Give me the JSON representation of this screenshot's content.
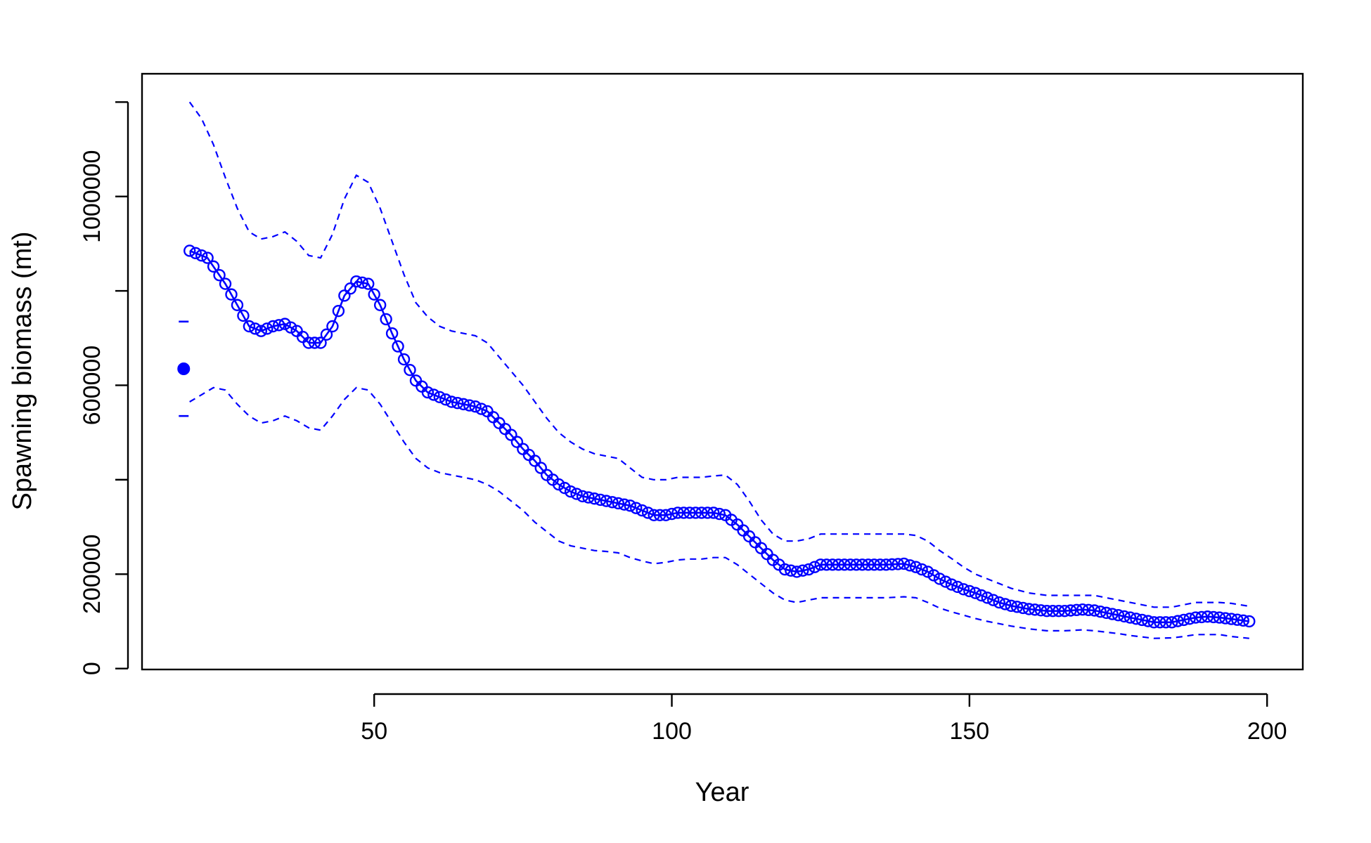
{
  "chart_data": {
    "type": "line",
    "title": "",
    "xlabel": "Year",
    "ylabel": "Spawning biomass (mt)",
    "xlim": [
      11,
      206
    ],
    "ylim": [
      -2000,
      1260000
    ],
    "x_ticks": [
      50,
      100,
      150,
      200
    ],
    "y_ticks": [
      0,
      200000,
      600000,
      1000000
    ],
    "x_tick_labels": [
      "50",
      "100",
      "150",
      "200"
    ],
    "y_tick_labels": [
      "0",
      "200000",
      "600000",
      "1000000"
    ],
    "grid": false,
    "legend": "none",
    "color": "#0000ff",
    "virgin_point": {
      "x": 18,
      "y": 635000,
      "lower": 535000,
      "upper": 735000
    },
    "series": [
      {
        "role": "estimate",
        "style": "line-with-open-circles",
        "points": [
          [
            19,
            885000
          ],
          [
            22,
            870000
          ],
          [
            25,
            815000
          ],
          [
            27,
            770000
          ],
          [
            29,
            725000
          ],
          [
            31,
            715000
          ],
          [
            33,
            725000
          ],
          [
            35,
            730000
          ],
          [
            37,
            715000
          ],
          [
            39,
            690000
          ],
          [
            41,
            690000
          ],
          [
            43,
            725000
          ],
          [
            45,
            790000
          ],
          [
            47,
            820000
          ],
          [
            49,
            815000
          ],
          [
            51,
            770000
          ],
          [
            53,
            710000
          ],
          [
            55,
            655000
          ],
          [
            57,
            610000
          ],
          [
            59,
            585000
          ],
          [
            61,
            575000
          ],
          [
            63,
            565000
          ],
          [
            65,
            560000
          ],
          [
            67,
            555000
          ],
          [
            69,
            545000
          ],
          [
            71,
            520000
          ],
          [
            73,
            495000
          ],
          [
            75,
            465000
          ],
          [
            77,
            440000
          ],
          [
            79,
            410000
          ],
          [
            81,
            390000
          ],
          [
            83,
            375000
          ],
          [
            85,
            365000
          ],
          [
            87,
            360000
          ],
          [
            89,
            355000
          ],
          [
            91,
            350000
          ],
          [
            93,
            345000
          ],
          [
            95,
            335000
          ],
          [
            97,
            325000
          ],
          [
            99,
            325000
          ],
          [
            101,
            330000
          ],
          [
            103,
            330000
          ],
          [
            105,
            330000
          ],
          [
            107,
            330000
          ],
          [
            109,
            325000
          ],
          [
            111,
            305000
          ],
          [
            113,
            280000
          ],
          [
            115,
            255000
          ],
          [
            117,
            230000
          ],
          [
            119,
            210000
          ],
          [
            121,
            205000
          ],
          [
            123,
            210000
          ],
          [
            125,
            220000
          ],
          [
            127,
            220000
          ],
          [
            130,
            220000
          ],
          [
            133,
            220000
          ],
          [
            136,
            220000
          ],
          [
            139,
            222000
          ],
          [
            141,
            215000
          ],
          [
            143,
            205000
          ],
          [
            145,
            190000
          ],
          [
            147,
            178000
          ],
          [
            149,
            168000
          ],
          [
            151,
            160000
          ],
          [
            153,
            150000
          ],
          [
            155,
            140000
          ],
          [
            157,
            133000
          ],
          [
            160,
            126000
          ],
          [
            163,
            122000
          ],
          [
            166,
            122000
          ],
          [
            169,
            125000
          ],
          [
            171,
            123000
          ],
          [
            173,
            118000
          ],
          [
            175,
            113000
          ],
          [
            177,
            108000
          ],
          [
            179,
            103000
          ],
          [
            181,
            98000
          ],
          [
            184,
            98000
          ],
          [
            186,
            103000
          ],
          [
            188,
            108000
          ],
          [
            190,
            110000
          ],
          [
            192,
            108000
          ],
          [
            194,
            105000
          ],
          [
            197,
            100000
          ]
        ]
      },
      {
        "role": "upper-95",
        "style": "dashed",
        "points": [
          [
            19,
            1200000
          ],
          [
            21,
            1165000
          ],
          [
            23,
            1110000
          ],
          [
            25,
            1040000
          ],
          [
            27,
            975000
          ],
          [
            29,
            925000
          ],
          [
            31,
            910000
          ],
          [
            33,
            915000
          ],
          [
            35,
            925000
          ],
          [
            37,
            905000
          ],
          [
            39,
            875000
          ],
          [
            41,
            870000
          ],
          [
            43,
            920000
          ],
          [
            45,
            995000
          ],
          [
            47,
            1045000
          ],
          [
            49,
            1030000
          ],
          [
            51,
            975000
          ],
          [
            53,
            905000
          ],
          [
            55,
            835000
          ],
          [
            57,
            775000
          ],
          [
            59,
            745000
          ],
          [
            61,
            725000
          ],
          [
            63,
            715000
          ],
          [
            65,
            710000
          ],
          [
            67,
            705000
          ],
          [
            69,
            690000
          ],
          [
            71,
            660000
          ],
          [
            73,
            630000
          ],
          [
            75,
            600000
          ],
          [
            77,
            565000
          ],
          [
            79,
            530000
          ],
          [
            81,
            500000
          ],
          [
            83,
            480000
          ],
          [
            85,
            465000
          ],
          [
            87,
            455000
          ],
          [
            89,
            450000
          ],
          [
            91,
            445000
          ],
          [
            93,
            425000
          ],
          [
            95,
            405000
          ],
          [
            97,
            400000
          ],
          [
            99,
            400000
          ],
          [
            101,
            405000
          ],
          [
            103,
            405000
          ],
          [
            105,
            405000
          ],
          [
            107,
            408000
          ],
          [
            109,
            410000
          ],
          [
            111,
            390000
          ],
          [
            113,
            355000
          ],
          [
            115,
            315000
          ],
          [
            117,
            285000
          ],
          [
            119,
            270000
          ],
          [
            121,
            270000
          ],
          [
            123,
            275000
          ],
          [
            125,
            285000
          ],
          [
            127,
            285000
          ],
          [
            130,
            285000
          ],
          [
            133,
            285000
          ],
          [
            136,
            285000
          ],
          [
            139,
            285000
          ],
          [
            141,
            282000
          ],
          [
            143,
            270000
          ],
          [
            145,
            250000
          ],
          [
            147,
            233000
          ],
          [
            149,
            215000
          ],
          [
            151,
            200000
          ],
          [
            153,
            190000
          ],
          [
            155,
            180000
          ],
          [
            157,
            170000
          ],
          [
            160,
            160000
          ],
          [
            163,
            155000
          ],
          [
            166,
            155000
          ],
          [
            169,
            155000
          ],
          [
            171,
            155000
          ],
          [
            173,
            150000
          ],
          [
            175,
            145000
          ],
          [
            177,
            140000
          ],
          [
            179,
            135000
          ],
          [
            181,
            130000
          ],
          [
            184,
            130000
          ],
          [
            186,
            135000
          ],
          [
            188,
            140000
          ],
          [
            190,
            140000
          ],
          [
            192,
            140000
          ],
          [
            194,
            138000
          ],
          [
            197,
            132000
          ]
        ]
      },
      {
        "role": "lower-95",
        "style": "dashed",
        "points": [
          [
            19,
            565000
          ],
          [
            21,
            580000
          ],
          [
            23,
            595000
          ],
          [
            25,
            590000
          ],
          [
            27,
            560000
          ],
          [
            29,
            535000
          ],
          [
            31,
            520000
          ],
          [
            33,
            525000
          ],
          [
            35,
            535000
          ],
          [
            37,
            525000
          ],
          [
            39,
            510000
          ],
          [
            41,
            505000
          ],
          [
            43,
            535000
          ],
          [
            45,
            570000
          ],
          [
            47,
            595000
          ],
          [
            49,
            590000
          ],
          [
            51,
            560000
          ],
          [
            53,
            520000
          ],
          [
            55,
            480000
          ],
          [
            57,
            445000
          ],
          [
            59,
            425000
          ],
          [
            61,
            415000
          ],
          [
            63,
            410000
          ],
          [
            65,
            405000
          ],
          [
            67,
            400000
          ],
          [
            69,
            390000
          ],
          [
            71,
            375000
          ],
          [
            73,
            355000
          ],
          [
            75,
            335000
          ],
          [
            77,
            310000
          ],
          [
            79,
            290000
          ],
          [
            81,
            270000
          ],
          [
            83,
            260000
          ],
          [
            85,
            255000
          ],
          [
            87,
            250000
          ],
          [
            89,
            248000
          ],
          [
            91,
            245000
          ],
          [
            93,
            235000
          ],
          [
            95,
            228000
          ],
          [
            97,
            222000
          ],
          [
            99,
            225000
          ],
          [
            101,
            230000
          ],
          [
            103,
            232000
          ],
          [
            105,
            232000
          ],
          [
            107,
            235000
          ],
          [
            109,
            235000
          ],
          [
            111,
            220000
          ],
          [
            113,
            200000
          ],
          [
            115,
            180000
          ],
          [
            117,
            160000
          ],
          [
            119,
            145000
          ],
          [
            121,
            140000
          ],
          [
            123,
            145000
          ],
          [
            125,
            150000
          ],
          [
            127,
            150000
          ],
          [
            130,
            150000
          ],
          [
            133,
            150000
          ],
          [
            136,
            150000
          ],
          [
            139,
            152000
          ],
          [
            141,
            150000
          ],
          [
            143,
            140000
          ],
          [
            145,
            128000
          ],
          [
            147,
            120000
          ],
          [
            149,
            113000
          ],
          [
            151,
            106000
          ],
          [
            153,
            100000
          ],
          [
            155,
            95000
          ],
          [
            157,
            90000
          ],
          [
            160,
            84000
          ],
          [
            163,
            80000
          ],
          [
            166,
            80000
          ],
          [
            169,
            82000
          ],
          [
            171,
            80000
          ],
          [
            173,
            77000
          ],
          [
            175,
            74000
          ],
          [
            177,
            70000
          ],
          [
            179,
            67000
          ],
          [
            181,
            64000
          ],
          [
            184,
            65000
          ],
          [
            186,
            68000
          ],
          [
            188,
            72000
          ],
          [
            190,
            72000
          ],
          [
            192,
            72000
          ],
          [
            194,
            68000
          ],
          [
            197,
            64000
          ]
        ]
      }
    ]
  }
}
